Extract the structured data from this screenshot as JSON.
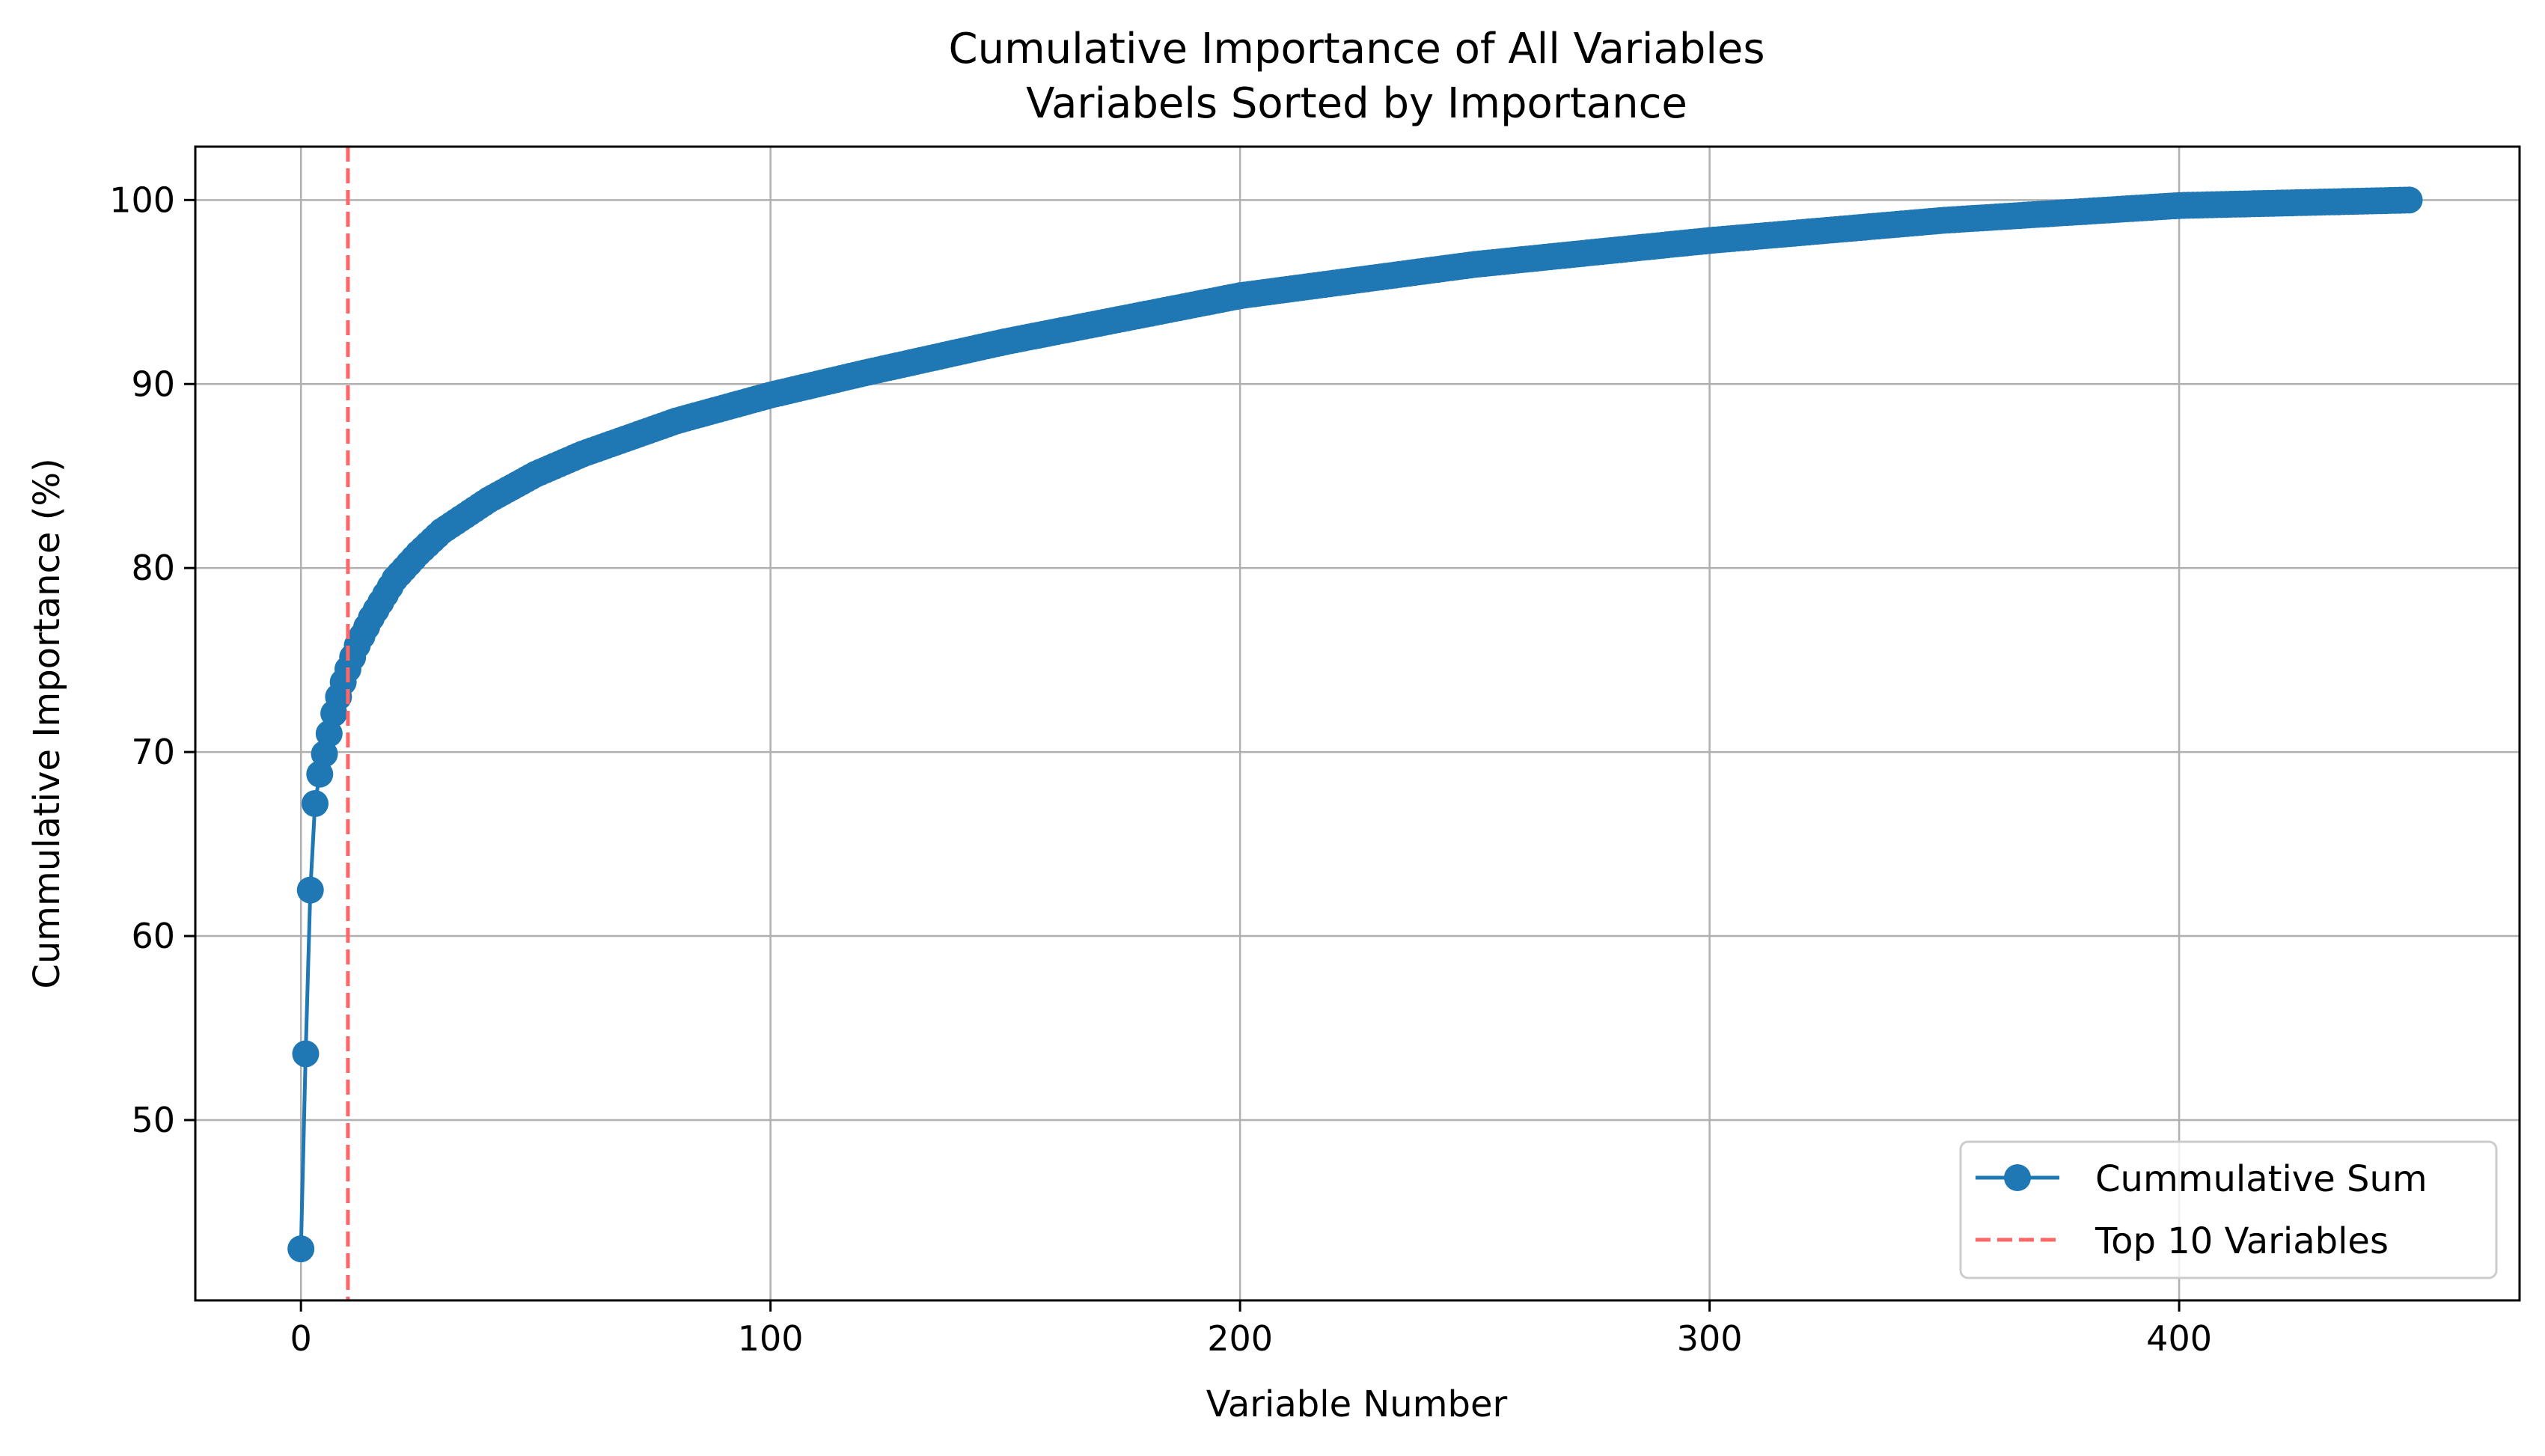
{
  "chart_data": {
    "type": "line",
    "title": "Cumulative Importance of All Variables",
    "subtitle": "Variabels Sorted by Importance",
    "xlabel": "Variable Number",
    "ylabel": "Cummulative Importance (%)",
    "xlim": [
      -22.5,
      472.5
    ],
    "ylim": [
      40.2,
      102.9
    ],
    "xticks": [
      0,
      100,
      200,
      300,
      400
    ],
    "yticks": [
      50,
      60,
      70,
      80,
      90,
      100
    ],
    "grid": true,
    "legend_position": "bottom-right",
    "series": [
      {
        "name": "Cummulative Sum",
        "color": "#1f77b4",
        "marker": "circle",
        "n_points": 450,
        "anchor_x": [
          0,
          1,
          2,
          3,
          4,
          5,
          6,
          7,
          8,
          9,
          10,
          12,
          15,
          20,
          25,
          30,
          40,
          50,
          60,
          70,
          80,
          100,
          120,
          150,
          200,
          250,
          300,
          350,
          400,
          449
        ],
        "anchor_y": [
          43.0,
          53.6,
          62.5,
          67.2,
          68.8,
          69.9,
          71.0,
          72.1,
          73.0,
          73.8,
          74.5,
          75.8,
          77.3,
          79.4,
          80.8,
          82.0,
          83.7,
          85.1,
          86.2,
          87.1,
          88.0,
          89.4,
          90.6,
          92.3,
          94.8,
          96.5,
          97.8,
          98.9,
          99.7,
          100.0
        ]
      },
      {
        "name": "Top 10 Variables",
        "color": "#ff6666",
        "style": "dashed",
        "x": 10
      }
    ]
  }
}
